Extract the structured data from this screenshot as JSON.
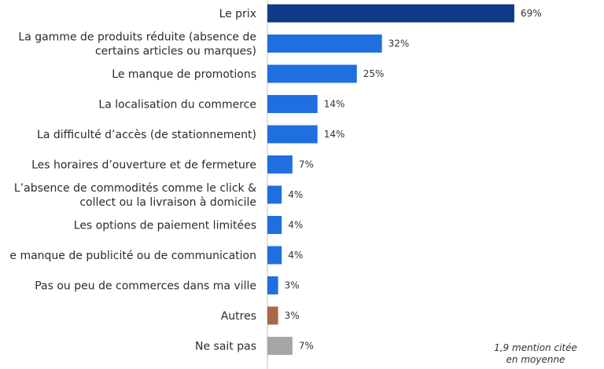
{
  "chart_data": {
    "type": "bar",
    "orientation": "horizontal",
    "categories": [
      [
        "Le prix"
      ],
      [
        "La gamme de produits réduite (absence de",
        "certains articles ou marques)"
      ],
      [
        "Le manque de promotions"
      ],
      [
        "La localisation du commerce"
      ],
      [
        "La difficulté d’accès (de stationnement)"
      ],
      [
        "Les horaires d’ouverture et de fermeture"
      ],
      [
        "L’absence de commodités comme le click &",
        "collect ou la livraison à domicile"
      ],
      [
        "Les options de paiement limitées"
      ],
      [
        "e manque de publicité ou de communication"
      ],
      [
        "Pas ou peu de commerces dans ma ville"
      ],
      [
        "Autres"
      ],
      [
        "Ne sait pas"
      ]
    ],
    "values": [
      69,
      32,
      25,
      14,
      14,
      7,
      4,
      4,
      4,
      3,
      3,
      7
    ],
    "value_labels": [
      "69%",
      "32%",
      "25%",
      "14%",
      "14%",
      "7%",
      "4%",
      "4%",
      "4%",
      "3%",
      "3%",
      "7%"
    ],
    "bar_colors": [
      "#0f3a8a",
      "#1f6fe0",
      "#1f6fe0",
      "#1f6fe0",
      "#1f6fe0",
      "#1f6fe0",
      "#1f6fe0",
      "#1f6fe0",
      "#1f6fe0",
      "#1f6fe0",
      "#a8694a",
      "#a6a6a6"
    ],
    "axis_color": "#bfbfbf",
    "title": "",
    "xlabel": "",
    "ylabel": "",
    "grid": false,
    "legend": "none"
  },
  "note": {
    "line1": "1,9 mention citée",
    "line2": "en moyenne"
  }
}
